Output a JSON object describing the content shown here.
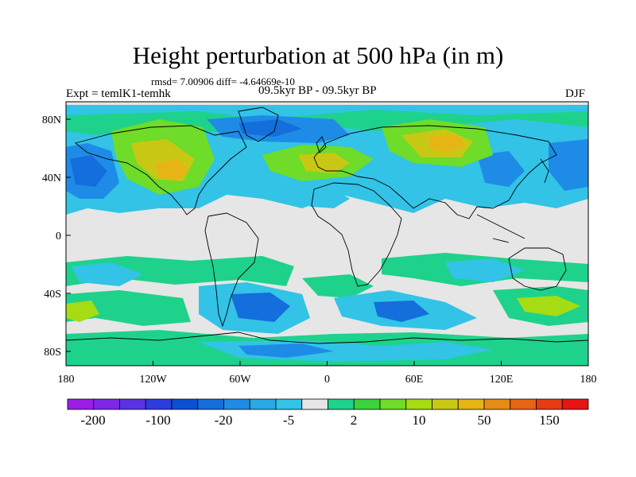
{
  "title": "Height perturbation at 500 hPa (in m)",
  "stats": "rmsd= 7.00906 diff= -4.64669e-10",
  "experiment": "Expt = temlK1-temhk",
  "period": "09.5kyr BP - 09.5kyr BP",
  "season": "DJF",
  "y_axis_labels": [
    "80N",
    "40N",
    "0",
    "40S",
    "80S"
  ],
  "x_axis_labels": [
    "180",
    "120W",
    "60W",
    "0",
    "60E",
    "120E",
    "180"
  ],
  "colorbar": {
    "colors": [
      "#9b1ee6",
      "#7d28e6",
      "#5a32e1",
      "#2d3cdc",
      "#0a50d2",
      "#146edc",
      "#1e8ce6",
      "#28aae6",
      "#32c3e6",
      "#e6e6e6",
      "#1ed28c",
      "#3cd23c",
      "#6edc28",
      "#a5dc14",
      "#c8c814",
      "#e6b414",
      "#e68c14",
      "#e66414",
      "#e63c14",
      "#e61414"
    ],
    "labels": [
      "-200",
      "-100",
      "-20",
      "-5",
      "2",
      "10",
      "50",
      "150"
    ]
  }
}
